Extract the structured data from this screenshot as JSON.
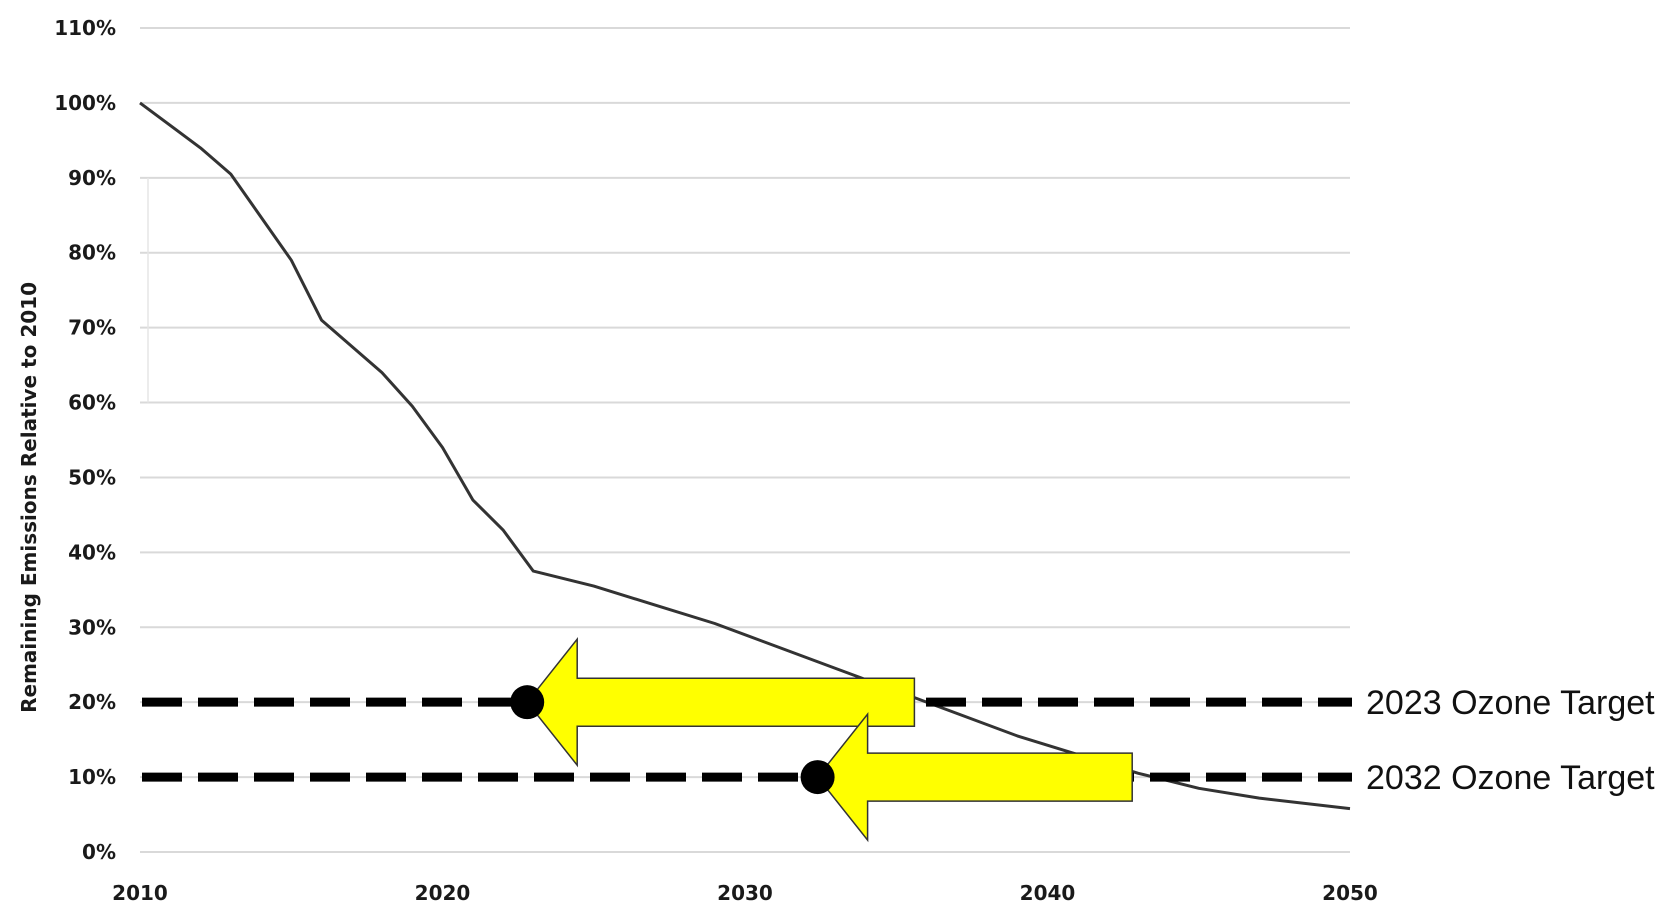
{
  "chart_data": {
    "type": "line",
    "title": "",
    "xlabel": "",
    "ylabel": "Remaining Emissions Relative to 2010",
    "xlim": [
      2010,
      2050
    ],
    "ylim": [
      0,
      110
    ],
    "x_ticks": [
      "2010",
      "2020",
      "2030",
      "2040",
      "2050"
    ],
    "y_ticks": [
      "0%",
      "10%",
      "20%",
      "30%",
      "40%",
      "50%",
      "60%",
      "70%",
      "80%",
      "90%",
      "100%",
      "110%"
    ],
    "grid": "horizontal",
    "series": [
      {
        "x": [
          2010,
          2012,
          2013,
          2015,
          2016,
          2018,
          2019,
          2020,
          2021,
          2022,
          2023,
          2025,
          2027,
          2029,
          2031,
          2033,
          2035,
          2037,
          2039,
          2041,
          2043,
          2045,
          2047,
          2050
        ],
        "y": [
          100,
          94,
          90.5,
          79,
          71,
          64,
          59.5,
          54,
          47,
          43,
          37.5,
          35.5,
          33,
          30.5,
          27.5,
          24.5,
          21.5,
          18.5,
          15.5,
          13,
          10.5,
          8.5,
          7.2,
          5.8
        ],
        "color": "#333333"
      }
    ],
    "targets": [
      {
        "label": "2023 Ozone Target",
        "y": 20,
        "marker_x": 2022.8,
        "arrow_from_x": 2035.6,
        "arrow_to_x": 2022.8
      },
      {
        "label": "2032 Ozone Target",
        "y": 10,
        "marker_x": 2032.4,
        "arrow_from_x": 2042.8,
        "arrow_to_x": 2032.4
      }
    ],
    "colors": {
      "line": "#333333",
      "grid": "#d9d9d9",
      "target_line": "#000000",
      "arrow_fill": "#ffff00",
      "arrow_stroke": "#333333",
      "marker": "#000000"
    }
  }
}
